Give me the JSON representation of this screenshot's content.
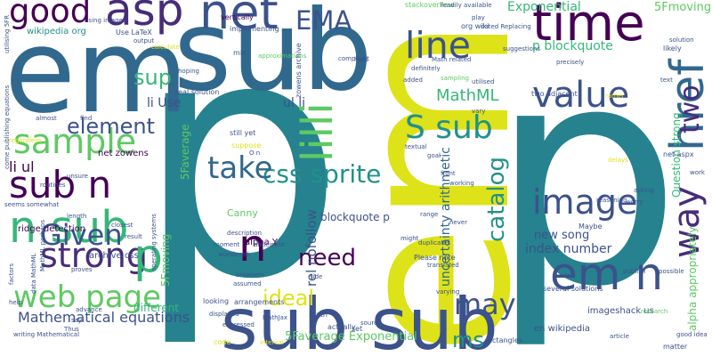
{
  "words": [
    {
      "text": "p",
      "color": "#26828e"
    },
    {
      "text": "em",
      "color": "#dde318"
    },
    {
      "text": "p",
      "color": "#26828e"
    },
    {
      "text": "sub",
      "color": "#31688e"
    },
    {
      "text": "em",
      "color": "#31688e"
    },
    {
      "text": "sub sub",
      "color": "#3b528b"
    },
    {
      "text": "time",
      "color": "#440154"
    },
    {
      "text": "asp",
      "color": "#472c7a"
    },
    {
      "text": "net",
      "color": "#3b528b"
    },
    {
      "text": "good",
      "color": "#440154"
    },
    {
      "text": "line",
      "color": "#3b528b"
    },
    {
      "text": "EMA",
      "color": "#3b528b"
    },
    {
      "text": "value",
      "color": "#3b528b"
    },
    {
      "text": "href",
      "color": "#31688e"
    },
    {
      "text": "image",
      "color": "#3b528b"
    },
    {
      "text": "em n",
      "color": "#3b528b"
    },
    {
      "text": "sample",
      "color": "#5ec962"
    },
    {
      "text": "sub n",
      "color": "#440154"
    },
    {
      "text": "n sub",
      "color": "#35b779"
    },
    {
      "text": "Given",
      "color": "#3b528b"
    },
    {
      "text": "strong",
      "color": "#472c7a"
    },
    {
      "text": "web page",
      "color": "#5ec962"
    },
    {
      "text": "p",
      "color": "#35b779"
    },
    {
      "text": "n",
      "color": "#440154"
    },
    {
      "text": "need",
      "color": "#440154"
    },
    {
      "text": "ideal",
      "color": "#dde318"
    },
    {
      "text": "may",
      "color": "#3b528b"
    },
    {
      "text": "ms",
      "color": "#21918c"
    },
    {
      "text": "way",
      "color": "#472c7a"
    },
    {
      "text": "two",
      "color": "#472c7a"
    },
    {
      "text": "S sub",
      "color": "#21918c"
    },
    {
      "text": "catalog",
      "color": "#21918c"
    },
    {
      "text": "css sprite",
      "color": "#21918c"
    },
    {
      "text": "take",
      "color": "#31688e"
    },
    {
      "text": "element",
      "color": "#3b528b"
    },
    {
      "text": "sup",
      "color": "#35b779"
    },
    {
      "text": "li Use",
      "color": "#3b528b"
    },
    {
      "text": "MathML",
      "color": "#35b779"
    },
    {
      "text": "lilli",
      "color": "#5ec962"
    },
    {
      "text": "ul li",
      "color": "#3b528b"
    },
    {
      "text": "Exponential",
      "color": "#35b779"
    },
    {
      "text": "5Fmoving",
      "color": "#5ec962"
    },
    {
      "text": "Question strong",
      "color": "#35b779"
    },
    {
      "text": "p blockquote",
      "color": "#35b779"
    },
    {
      "text": "uncertainty arithmetic",
      "color": "#31688e"
    },
    {
      "text": "rel nofollow",
      "color": "#3b528b"
    },
    {
      "text": "blockquote p",
      "color": "#3b528b"
    },
    {
      "text": "new song",
      "color": "#3b528b"
    },
    {
      "text": "index number",
      "color": "#3b528b"
    },
    {
      "text": "Mathematical equations",
      "color": "#3b528b"
    },
    {
      "text": "5Faverage Exponential",
      "color": "#5ec962"
    },
    {
      "text": "en wikipedia",
      "color": "#3b528b"
    },
    {
      "text": "imageshack us",
      "color": "#3b528b"
    },
    {
      "text": "alpha appropriately",
      "color": "#5ec962"
    },
    {
      "text": "5Faverage",
      "color": "#5ec962"
    },
    {
      "text": "5Fmoving",
      "color": "#5ec962"
    },
    {
      "text": "archive css",
      "color": "#3b528b"
    },
    {
      "text": "ridge detection",
      "color": "#440154"
    },
    {
      "text": "li ul",
      "color": "#440154"
    },
    {
      "text": "net zowens",
      "color": "#440154"
    },
    {
      "text": "Canny",
      "color": "#5ec962"
    },
    {
      "text": "alpha Y",
      "color": "#440154"
    },
    {
      "text": "different",
      "color": "#35b779"
    },
    {
      "text": "wikipedia org",
      "color": "#21918c"
    },
    {
      "text": "Use LaTeX",
      "color": "#3b528b"
    },
    {
      "text": "stackoverflow",
      "color": "#5ec962"
    },
    {
      "text": "readily available",
      "color": "#3b528b"
    },
    {
      "text": "implementing",
      "color": "#3b528b"
    },
    {
      "text": "vertically",
      "color": "#440154"
    },
    {
      "text": "approximations",
      "color": "#5ec962"
    },
    {
      "text": "mix",
      "color": "#3b528b"
    },
    {
      "text": "zowens archive",
      "color": "#3b528b"
    },
    {
      "text": "real solution",
      "color": "#3b528b"
    },
    {
      "text": "hoping",
      "color": "#3b528b"
    },
    {
      "text": "compliant",
      "color": "#3b528b"
    },
    {
      "text": "hard",
      "color": "#3b528b"
    },
    {
      "text": "play",
      "color": "#3b528b"
    },
    {
      "text": "org wiki",
      "color": "#3b528b"
    },
    {
      "text": "dated Replacing",
      "color": "#3b528b"
    },
    {
      "text": "Math related",
      "color": "#3b528b"
    },
    {
      "text": "definitely",
      "color": "#3b528b"
    },
    {
      "text": "added",
      "color": "#3b528b"
    },
    {
      "text": "sampling",
      "color": "#5ec962"
    },
    {
      "text": "utilised",
      "color": "#3b528b"
    },
    {
      "text": "precisely",
      "color": "#3b528b"
    },
    {
      "text": "suggestions",
      "color": "#3b528b"
    },
    {
      "text": "two adjacent",
      "color": "#3b528b"
    },
    {
      "text": "rather",
      "color": "#dde318"
    },
    {
      "text": "likely",
      "color": "#3b528b"
    },
    {
      "text": "solution",
      "color": "#3b528b"
    },
    {
      "text": "text",
      "color": "#3b528b"
    },
    {
      "text": "still yet",
      "color": "#3b528b"
    },
    {
      "text": "suppose",
      "color": "#dde318"
    },
    {
      "text": "O n",
      "color": "#3b528b"
    },
    {
      "text": "textual",
      "color": "#3b528b"
    },
    {
      "text": "goal",
      "color": "#3b528b"
    },
    {
      "text": "vary",
      "color": "#3b528b"
    },
    {
      "text": "net aspx",
      "color": "#3b528b"
    },
    {
      "text": "work",
      "color": "#3b528b"
    },
    {
      "text": "delays",
      "color": "#dde318"
    },
    {
      "text": "asking",
      "color": "#3b528b"
    },
    {
      "text": "worry",
      "color": "#3b528b"
    },
    {
      "text": "reasoning",
      "color": "#3b528b"
    },
    {
      "text": "Maybe",
      "color": "#3b528b"
    },
    {
      "text": "Please note",
      "color": "#3b528b"
    },
    {
      "text": "translated",
      "color": "#3b528b"
    },
    {
      "text": "duplicates",
      "color": "#3b528b"
    },
    {
      "text": "might",
      "color": "#3b528b"
    },
    {
      "text": "never",
      "color": "#3b528b"
    },
    {
      "text": "range",
      "color": "#3b528b"
    },
    {
      "text": "front",
      "color": "#3b528b"
    },
    {
      "text": "working",
      "color": "#3b528b"
    },
    {
      "text": "math",
      "color": "#3b528b"
    },
    {
      "text": "side",
      "color": "#3b528b"
    },
    {
      "text": "arrangements",
      "color": "#3b528b"
    },
    {
      "text": "looking",
      "color": "#3b528b"
    },
    {
      "text": "displayed",
      "color": "#3b528b"
    },
    {
      "text": "MathJax",
      "color": "#3b528b"
    },
    {
      "text": "expressed",
      "color": "#3b528b"
    },
    {
      "text": "interval",
      "color": "#dde318"
    },
    {
      "text": "code",
      "color": "#dde318"
    },
    {
      "text": "browsers",
      "color": "#3b528b"
    },
    {
      "text": "assumed",
      "color": "#3b528b"
    },
    {
      "text": "wondered",
      "color": "#3b528b"
    },
    {
      "text": "moment",
      "color": "#3b528b"
    },
    {
      "text": "anticipate",
      "color": "#3b528b"
    },
    {
      "text": "description",
      "color": "#3b528b"
    },
    {
      "text": "several solutions",
      "color": "#3b528b"
    },
    {
      "text": "utilising 5FR",
      "color": "#3b528b"
    },
    {
      "text": "come publishing equations",
      "color": "#3b528b"
    },
    {
      "text": "almost",
      "color": "#3b528b"
    },
    {
      "text": "find",
      "color": "#3b528b"
    },
    {
      "text": "regardless",
      "color": "#dde318"
    },
    {
      "text": "unsure",
      "color": "#3b528b"
    },
    {
      "text": "length",
      "color": "#3b528b"
    },
    {
      "text": "routines",
      "color": "#3b528b"
    },
    {
      "text": "seems somewhat",
      "color": "#3b528b"
    },
    {
      "text": "closest",
      "color": "#3b528b"
    },
    {
      "text": "result",
      "color": "#3b528b"
    },
    {
      "text": "factors",
      "color": "#3b528b"
    },
    {
      "text": "data MathML",
      "color": "#3b528b"
    },
    {
      "text": "MathML perhaps",
      "color": "#3b528b"
    },
    {
      "text": "proves",
      "color": "#3b528b"
    },
    {
      "text": "help",
      "color": "#3b528b"
    },
    {
      "text": "advance",
      "color": "#3b528b"
    },
    {
      "text": "say",
      "color": "#3b528b"
    },
    {
      "text": "Thus",
      "color": "#3b528b"
    },
    {
      "text": "writing Mathematical",
      "color": "#3b528b"
    },
    {
      "text": "operating systems",
      "color": "#3b528b"
    },
    {
      "text": "using images",
      "color": "#3b528b"
    },
    {
      "text": "calculate",
      "color": "#dde318"
    },
    {
      "text": "output",
      "color": "#3b528b"
    },
    {
      "text": "actually",
      "color": "#3b528b"
    },
    {
      "text": "set",
      "color": "#3b528b"
    },
    {
      "text": "source",
      "color": "#3b528b"
    },
    {
      "text": "article",
      "color": "#3b528b"
    },
    {
      "text": "matter",
      "color": "#3b528b"
    },
    {
      "text": "good idea",
      "color": "#3b528b"
    },
    {
      "text": "rectangles",
      "color": "#3b528b"
    },
    {
      "text": "varying",
      "color": "#3b528b"
    },
    {
      "text": "research",
      "color": "#5ec962"
    },
    {
      "text": "possible",
      "color": "#3b528b"
    },
    {
      "text": "publish",
      "color": "#3b528b"
    }
  ]
}
